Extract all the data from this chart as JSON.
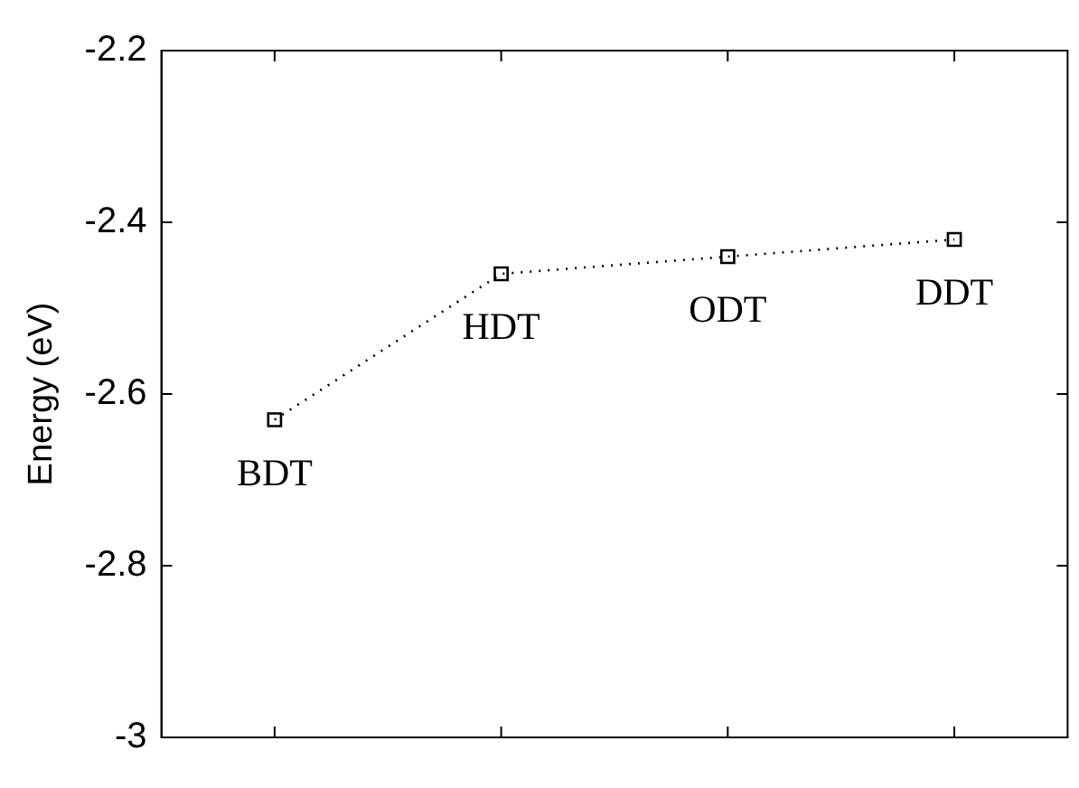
{
  "chart_data": {
    "type": "line",
    "ylabel": "Energy (eV)",
    "categories": [
      "BDT",
      "HDT",
      "ODT",
      "DDT"
    ],
    "series": [
      {
        "color": "#000000",
        "values": [
          -2.63,
          -2.46,
          -2.44,
          -2.42
        ]
      }
    ],
    "ylim": [
      -3,
      -2.2
    ],
    "yticks": [
      -3,
      -2.8,
      -2.6,
      -2.4,
      -2.2
    ],
    "marker": "square",
    "line_style": "dotted",
    "grid": false,
    "legend": false
  }
}
